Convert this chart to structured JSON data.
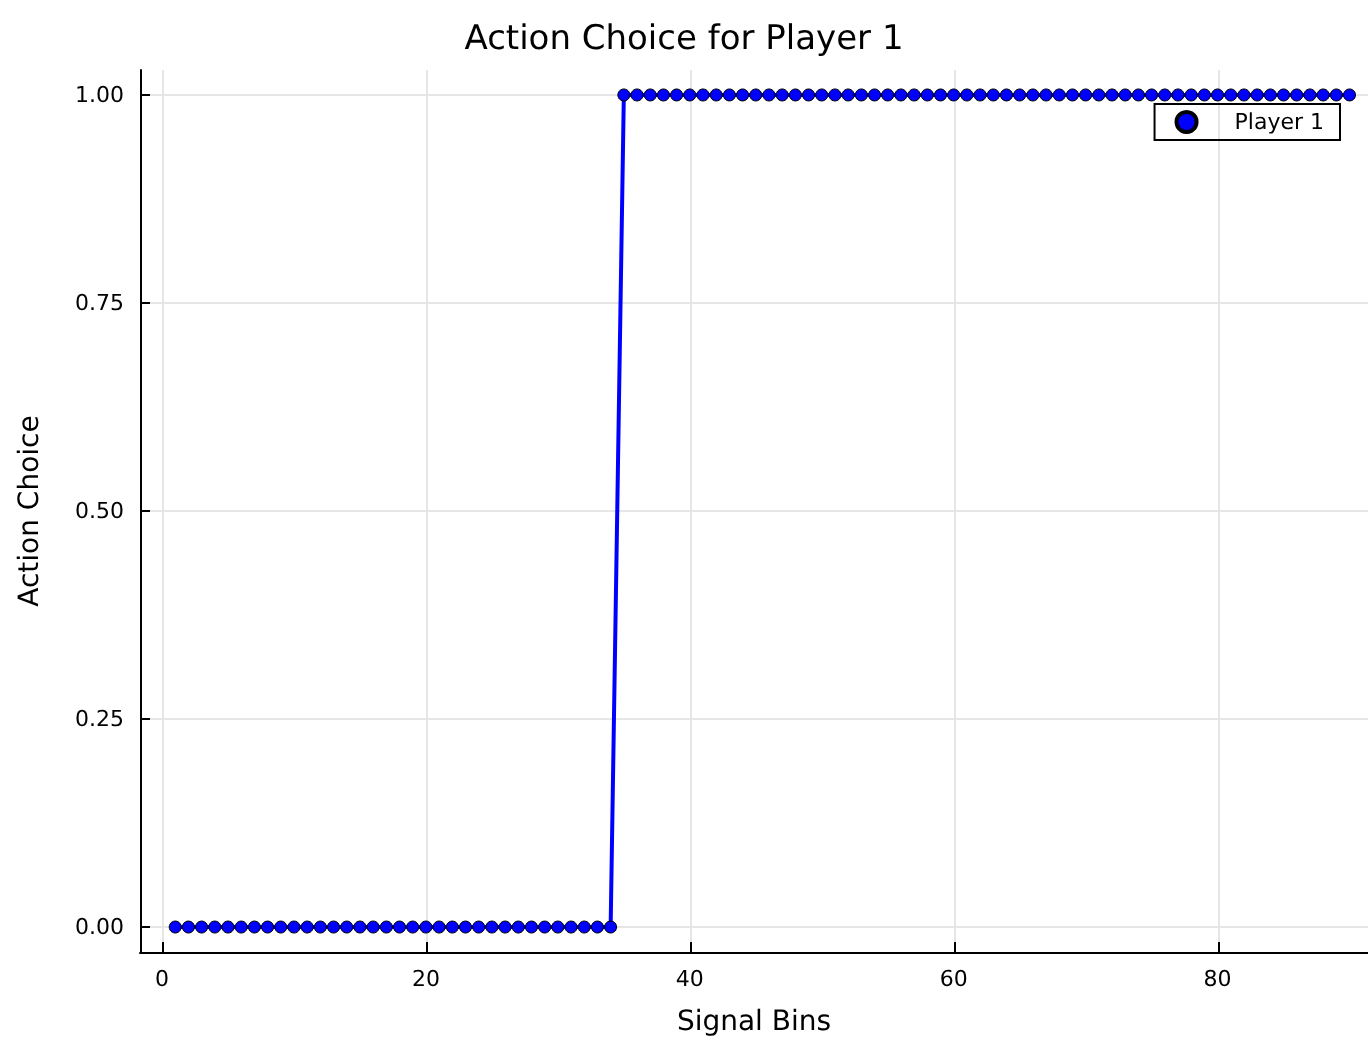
{
  "chart_data": {
    "type": "line",
    "title": "Action Choice for Player 1",
    "xlabel": "Signal Bins",
    "ylabel": "Action Choice",
    "x": [
      1,
      2,
      3,
      4,
      5,
      6,
      7,
      8,
      9,
      10,
      11,
      12,
      13,
      14,
      15,
      16,
      17,
      18,
      19,
      20,
      21,
      22,
      23,
      24,
      25,
      26,
      27,
      28,
      29,
      30,
      31,
      32,
      33,
      34,
      35,
      36,
      37,
      38,
      39,
      40,
      41,
      42,
      43,
      44,
      45,
      46,
      47,
      48,
      49,
      50,
      51,
      52,
      53,
      54,
      55,
      56,
      57,
      58,
      59,
      60,
      61,
      62,
      63,
      64,
      65,
      66,
      67,
      68,
      69,
      70,
      71,
      72,
      73,
      74,
      75,
      76,
      77,
      78,
      79,
      80,
      81,
      82,
      83,
      84,
      85,
      86,
      87,
      88,
      89,
      90
    ],
    "series": [
      {
        "name": "Player 1",
        "color": "#0000ff",
        "values": [
          0,
          0,
          0,
          0,
          0,
          0,
          0,
          0,
          0,
          0,
          0,
          0,
          0,
          0,
          0,
          0,
          0,
          0,
          0,
          0,
          0,
          0,
          0,
          0,
          0,
          0,
          0,
          0,
          0,
          0,
          0,
          0,
          0,
          0,
          1,
          1,
          1,
          1,
          1,
          1,
          1,
          1,
          1,
          1,
          1,
          1,
          1,
          1,
          1,
          1,
          1,
          1,
          1,
          1,
          1,
          1,
          1,
          1,
          1,
          1,
          1,
          1,
          1,
          1,
          1,
          1,
          1,
          1,
          1,
          1,
          1,
          1,
          1,
          1,
          1,
          1,
          1,
          1,
          1,
          1,
          1,
          1,
          1,
          1,
          1,
          1,
          1,
          1,
          1,
          1
        ]
      }
    ],
    "xlim": [
      -1.67,
      91.4
    ],
    "ylim": [
      -0.03,
      1.03
    ],
    "xticks": [
      0,
      20,
      40,
      60,
      80
    ],
    "yticks": [
      {
        "value": 0,
        "label": "0.00"
      },
      {
        "value": 0.25,
        "label": "0.25"
      },
      {
        "value": 0.5,
        "label": "0.50"
      },
      {
        "value": 0.75,
        "label": "0.75"
      },
      {
        "value": 1,
        "label": "1.00"
      }
    ],
    "grid": true,
    "legend": "top right",
    "marker": "circle",
    "line_style": "solid"
  }
}
